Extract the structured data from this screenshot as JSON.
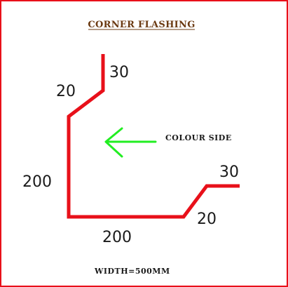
{
  "title": "CORNER  FLASHING",
  "colors": {
    "frame": "#e8101a",
    "profile": "#e8101a",
    "arrow": "#22ee22",
    "title": "#6b3a12",
    "text": "#1a1a1a"
  },
  "dimensions": {
    "top_return": "30",
    "top_bend": "20",
    "vertical_leg": "200",
    "horizontal_leg": "200",
    "right_bend": "20",
    "right_return": "30"
  },
  "colour_side_label": "COLOUR  SIDE",
  "arrow_icon": "left-arrow-icon",
  "width_label": "WIDTH=500MM"
}
